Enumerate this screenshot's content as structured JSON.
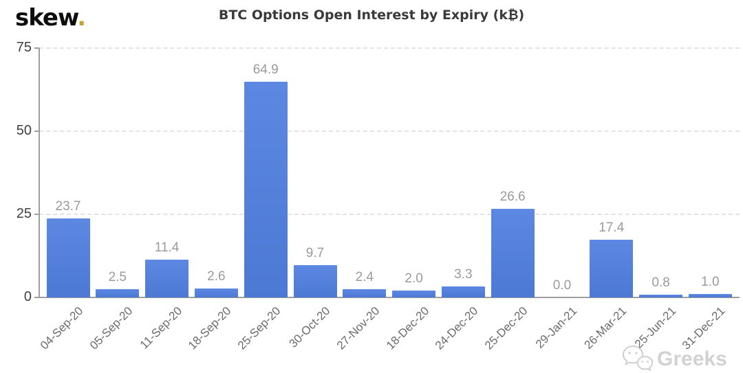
{
  "logo": {
    "text": "skew",
    "dot": "."
  },
  "watermark": {
    "text": "Greeks",
    "icon": "wechat-icon"
  },
  "chart_data": {
    "type": "bar",
    "title": "BTC Options Open Interest by Expiry (k₿)",
    "categories": [
      "04-Sep-20",
      "05-Sep-20",
      "11-Sep-20",
      "18-Sep-20",
      "25-Sep-20",
      "30-Oct-20",
      "27-Nov-20",
      "18-Dec-20",
      "24-Dec-20",
      "25-Dec-20",
      "29-Jan-21",
      "26-Mar-21",
      "25-Jun-21",
      "31-Dec-21"
    ],
    "values": [
      23.7,
      2.5,
      11.4,
      2.6,
      64.9,
      9.7,
      2.4,
      2.0,
      3.3,
      26.6,
      0.0,
      17.4,
      0.8,
      1.0
    ],
    "value_label_format": "one-decimal",
    "xlabel": "",
    "ylabel": "",
    "yticks": [
      0,
      25,
      50,
      75
    ],
    "ylim": [
      0,
      75
    ],
    "grid": "horizontal-dashed",
    "legend": "none",
    "colors": {
      "bar_top": "#5c88e2",
      "bar_bottom": "#4c79d3",
      "value_label": "#9a9a9a",
      "axis": "#9e9e9e",
      "gridline": "#e3e3e3",
      "ytick_label": "#3f3f3f",
      "xtick_label": "#6b6b6b",
      "title": "#3a3a3a",
      "logo_dot": "#c7a23c",
      "watermark": "#d2d2d2"
    }
  }
}
